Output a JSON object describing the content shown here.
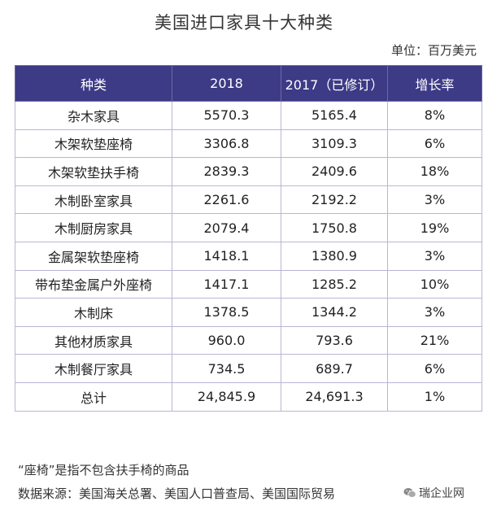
{
  "title": "美国进口家具十大种类",
  "unit": "单位：百万美元",
  "table": {
    "headers": [
      "种类",
      "2018",
      "2017（已修订）",
      "增长率"
    ],
    "rows": [
      [
        "杂木家具",
        "5570.3",
        "5165.4",
        "8%"
      ],
      [
        "木架软垫座椅",
        "3306.8",
        "3109.3",
        "6%"
      ],
      [
        "木架软垫扶手椅",
        "2839.3",
        "2409.6",
        "18%"
      ],
      [
        "木制卧室家具",
        "2261.6",
        "2192.2",
        "3%"
      ],
      [
        "木制厨房家具",
        "2079.4",
        "1750.8",
        "19%"
      ],
      [
        "金属架软垫座椅",
        "1418.1",
        "1380.9",
        "3%"
      ],
      [
        "带布垫金属户外座椅",
        "1417.1",
        "1285.2",
        "10%"
      ],
      [
        "木制床",
        "1378.5",
        "1344.2",
        "3%"
      ],
      [
        "其他材质家具",
        "960.0",
        "793.6",
        "21%"
      ],
      [
        "木制餐厅家具",
        "734.5",
        "689.7",
        "6%"
      ],
      [
        "总计",
        "24,845.9",
        "24,691.3",
        "1%"
      ]
    ]
  },
  "footnotes": {
    "note": "“座椅”是指不包含扶手椅的商品",
    "source": "数据来源：美国海关总署、美国人口普查局、美国国际贸易"
  },
  "watermark": {
    "icon": "wechat-icon",
    "text": "瑞企业网"
  }
}
